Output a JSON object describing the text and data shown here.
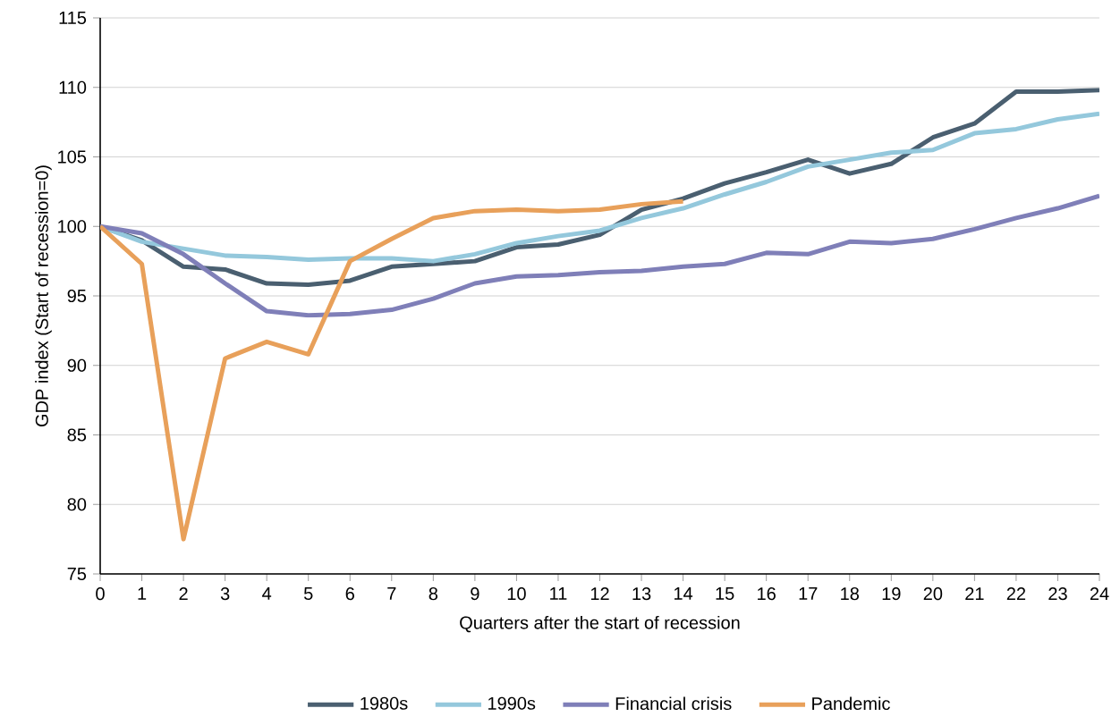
{
  "chart_data": {
    "type": "line",
    "xlabel": "Quarters after the start of recession",
    "ylabel": "GDP index (Start of recession=0)",
    "x": [
      0,
      1,
      2,
      3,
      4,
      5,
      6,
      7,
      8,
      9,
      10,
      11,
      12,
      13,
      14,
      15,
      16,
      17,
      18,
      19,
      20,
      21,
      22,
      23,
      24
    ],
    "series": [
      {
        "name": "1980s",
        "color": "#4a5f70",
        "values": [
          100,
          99.0,
          97.1,
          96.9,
          95.9,
          95.8,
          96.1,
          97.1,
          97.3,
          97.5,
          98.5,
          98.7,
          99.4,
          101.2,
          102.0,
          103.1,
          103.9,
          104.8,
          103.8,
          104.5,
          106.4,
          107.4,
          109.7,
          109.7,
          109.8
        ]
      },
      {
        "name": "1990s",
        "color": "#94c8dc",
        "values": [
          100,
          98.9,
          98.4,
          97.9,
          97.8,
          97.6,
          97.7,
          97.7,
          97.5,
          98.0,
          98.8,
          99.3,
          99.7,
          100.6,
          101.3,
          102.3,
          103.2,
          104.3,
          104.8,
          105.3,
          105.5,
          106.7,
          107.0,
          107.7,
          108.1
        ]
      },
      {
        "name": "Financial crisis",
        "color": "#7f7fb8",
        "values": [
          100,
          99.5,
          98.0,
          95.9,
          93.9,
          93.6,
          93.7,
          94.0,
          94.8,
          95.9,
          96.4,
          96.5,
          96.7,
          96.8,
          97.1,
          97.3,
          98.1,
          98.0,
          98.9,
          98.8,
          99.1,
          99.8,
          100.6,
          101.3,
          102.2
        ]
      },
      {
        "name": "Pandemic",
        "color": "#e8a05a",
        "values": [
          100,
          97.3,
          77.5,
          90.5,
          91.7,
          90.8,
          97.5,
          99.1,
          100.6,
          101.1,
          101.2,
          101.1,
          101.2,
          101.6,
          101.8,
          null,
          null,
          null,
          null,
          null,
          null,
          null,
          null,
          null,
          null
        ]
      }
    ],
    "xlim": [
      0,
      24
    ],
    "xticks": [
      0,
      1,
      2,
      3,
      4,
      5,
      6,
      7,
      8,
      9,
      10,
      11,
      12,
      13,
      14,
      15,
      16,
      17,
      18,
      19,
      20,
      21,
      22,
      23,
      24
    ],
    "ylim": [
      75,
      115
    ],
    "yticks": [
      75,
      80,
      85,
      90,
      95,
      100,
      105,
      110,
      115
    ],
    "grid": "y",
    "legend": "bottom",
    "marker": "none",
    "line_style": "solid"
  }
}
